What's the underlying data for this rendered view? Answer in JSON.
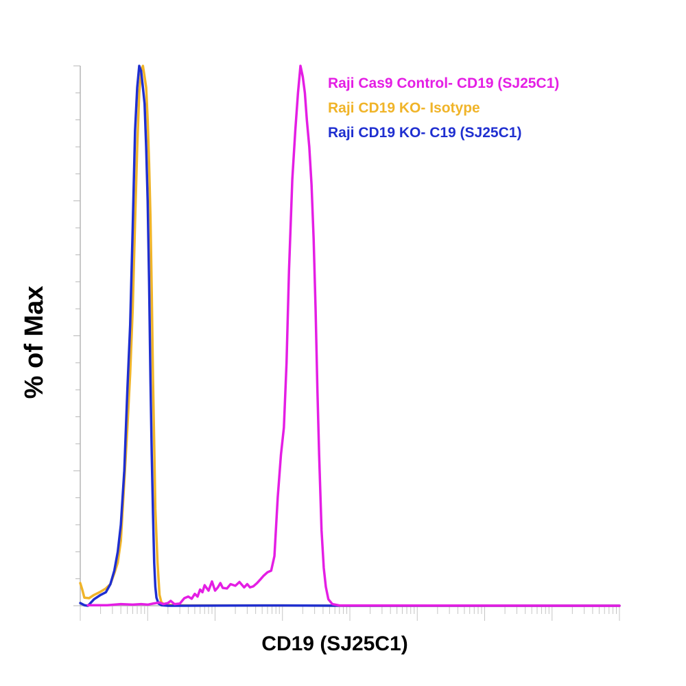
{
  "chart_data": {
    "type": "line",
    "title": "",
    "xlabel": "CD19 (SJ25C1)",
    "ylabel": "% of Max",
    "xscale": "log",
    "xlim": [
      1,
      100000000
    ],
    "ylim": [
      0,
      100
    ],
    "grid": false,
    "legend_position": "top-right",
    "series": [
      {
        "name": "Raji Cas9 Control- CD19 (SJ25C1)",
        "color": "#e41ee4",
        "points": [
          [
            1.3,
            0.1
          ],
          [
            2.5,
            0.1
          ],
          [
            4,
            0.3
          ],
          [
            6,
            0.2
          ],
          [
            8,
            0.3
          ],
          [
            10,
            0.2
          ],
          [
            12,
            0.4
          ],
          [
            15,
            0.6
          ],
          [
            17,
            0.3
          ],
          [
            20,
            0.5
          ],
          [
            22,
            0.9
          ],
          [
            25,
            0.3
          ],
          [
            30,
            0.4
          ],
          [
            35,
            1.4
          ],
          [
            40,
            1.7
          ],
          [
            45,
            1.3
          ],
          [
            50,
            2.2
          ],
          [
            55,
            1.7
          ],
          [
            60,
            3.0
          ],
          [
            65,
            2.5
          ],
          [
            70,
            3.8
          ],
          [
            80,
            2.8
          ],
          [
            90,
            4.5
          ],
          [
            100,
            2.8
          ],
          [
            110,
            3.4
          ],
          [
            120,
            4.2
          ],
          [
            130,
            3.3
          ],
          [
            150,
            3.2
          ],
          [
            170,
            4.0
          ],
          [
            200,
            3.7
          ],
          [
            230,
            4.4
          ],
          [
            270,
            3.4
          ],
          [
            300,
            4.0
          ],
          [
            330,
            3.4
          ],
          [
            370,
            3.6
          ],
          [
            420,
            4.2
          ],
          [
            480,
            5.0
          ],
          [
            520,
            5.5
          ],
          [
            600,
            6.2
          ],
          [
            680,
            6.5
          ],
          [
            760,
            9.2
          ],
          [
            850,
            20.0
          ],
          [
            950,
            28.0
          ],
          [
            1050,
            33.0
          ],
          [
            1150,
            45.0
          ],
          [
            1250,
            62.0
          ],
          [
            1400,
            79.0
          ],
          [
            1550,
            88.0
          ],
          [
            1700,
            95.0
          ],
          [
            1850,
            100.0
          ],
          [
            2000,
            98.0
          ],
          [
            2150,
            95.0
          ],
          [
            2300,
            90.0
          ],
          [
            2500,
            85.0
          ],
          [
            2700,
            78.0
          ],
          [
            2900,
            68.0
          ],
          [
            3100,
            55.0
          ],
          [
            3300,
            40.0
          ],
          [
            3500,
            28.0
          ],
          [
            3800,
            14.0
          ],
          [
            4100,
            7.0
          ],
          [
            4400,
            3.5
          ],
          [
            4800,
            1.2
          ],
          [
            5500,
            0.3
          ],
          [
            7000,
            0.05
          ],
          [
            100000000,
            0
          ]
        ]
      },
      {
        "name": "Raji CD19 KO- Isotype",
        "color": "#f0b429",
        "points": [
          [
            1.0,
            4.2
          ],
          [
            1.07,
            3.0
          ],
          [
            1.15,
            1.5
          ],
          [
            1.35,
            1.4
          ],
          [
            1.6,
            2.0
          ],
          [
            2.0,
            2.6
          ],
          [
            2.4,
            3.2
          ],
          [
            2.8,
            4.0
          ],
          [
            3.2,
            6.0
          ],
          [
            3.6,
            8.0
          ],
          [
            4.0,
            12.0
          ],
          [
            4.5,
            23.0
          ],
          [
            5.0,
            33.0
          ],
          [
            5.5,
            43.0
          ],
          [
            6.0,
            55.0
          ],
          [
            6.5,
            71.0
          ],
          [
            7.0,
            85.0
          ],
          [
            7.5,
            95.0
          ],
          [
            8.0,
            99.0
          ],
          [
            8.5,
            100.0
          ],
          [
            9.0,
            98.0
          ],
          [
            9.5,
            96.0
          ],
          [
            10.0,
            90.0
          ],
          [
            10.5,
            82.0
          ],
          [
            11.0,
            72.0
          ],
          [
            11.5,
            58.0
          ],
          [
            12.0,
            42.0
          ],
          [
            12.5,
            30.0
          ],
          [
            13.0,
            18.0
          ],
          [
            14.0,
            8.0
          ],
          [
            15.0,
            2.0
          ],
          [
            16.0,
            0.6
          ],
          [
            18.0,
            0.2
          ],
          [
            25.0,
            0.1
          ],
          [
            40.0,
            0.05
          ],
          [
            1000,
            0.05
          ],
          [
            10000,
            0
          ],
          [
            100000000,
            0
          ]
        ]
      },
      {
        "name": "Raji CD19 KO- C19 (SJ25C1)",
        "color": "#1f2fd0",
        "points": [
          [
            1.0,
            0.5
          ],
          [
            1.15,
            0.1
          ],
          [
            1.3,
            0.0
          ],
          [
            1.6,
            1.2
          ],
          [
            2.0,
            2.0
          ],
          [
            2.4,
            2.5
          ],
          [
            2.8,
            4.0
          ],
          [
            3.2,
            6.5
          ],
          [
            3.6,
            10.0
          ],
          [
            4.0,
            15.0
          ],
          [
            4.5,
            25.0
          ],
          [
            5.0,
            40.0
          ],
          [
            5.5,
            52.0
          ],
          [
            6.0,
            70.0
          ],
          [
            6.5,
            88.0
          ],
          [
            7.0,
            96.0
          ],
          [
            7.5,
            100.0
          ],
          [
            8.0,
            99.0
          ],
          [
            8.5,
            96.0
          ],
          [
            9.0,
            93.0
          ],
          [
            9.5,
            85.0
          ],
          [
            10.0,
            75.0
          ],
          [
            10.5,
            60.0
          ],
          [
            11.0,
            42.0
          ],
          [
            11.5,
            28.0
          ],
          [
            12.0,
            17.0
          ],
          [
            12.5,
            8.0
          ],
          [
            13.0,
            3.5
          ],
          [
            13.5,
            1.5
          ],
          [
            14.5,
            0.4
          ],
          [
            16.0,
            0.1
          ],
          [
            20.0,
            0.0
          ],
          [
            1000,
            0.05
          ],
          [
            10000,
            0
          ],
          [
            100000000,
            0
          ]
        ]
      }
    ]
  }
}
